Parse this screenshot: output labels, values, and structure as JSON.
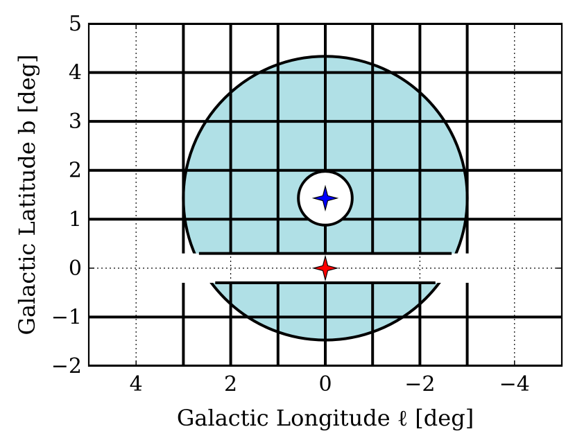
{
  "chart_data": {
    "type": "scatter",
    "title": "",
    "xlabel": "Galactic Longitude ℓ [deg]",
    "ylabel": "Galactic Latitude b [deg]",
    "xlim": [
      5,
      -5
    ],
    "ylim": [
      -2,
      5
    ],
    "x_axis_reversed": true,
    "grid": true,
    "grid_style": "dotted",
    "x_ticks": [
      4,
      2,
      0,
      -2,
      -4
    ],
    "x_tick_labels": [
      "4",
      "2",
      "0",
      "−2",
      "−4"
    ],
    "y_ticks": [
      -2,
      -1,
      0,
      1,
      2,
      3,
      4,
      5
    ],
    "y_tick_labels": [
      "−2",
      "−1",
      "0",
      "1",
      "2",
      "3",
      "4",
      "5"
    ],
    "survey_region": {
      "circle_center": [
        0.0,
        1.43
      ],
      "circle_radius": 2.9,
      "hole_center": [
        0.0,
        1.43
      ],
      "hole_radius": 0.55,
      "upper_cut_b": 0.3,
      "lower_cut_b": -0.3,
      "grid_spacing_deg": 1.0,
      "fill_color": "#b0e0e6",
      "edge_color": "#000000"
    },
    "markers": [
      {
        "l": 0.0,
        "b": 1.43,
        "shape": "star4",
        "color": "#0000ff"
      },
      {
        "l": 0.0,
        "b": 0.0,
        "shape": "star4",
        "color": "#ff0000"
      }
    ]
  }
}
